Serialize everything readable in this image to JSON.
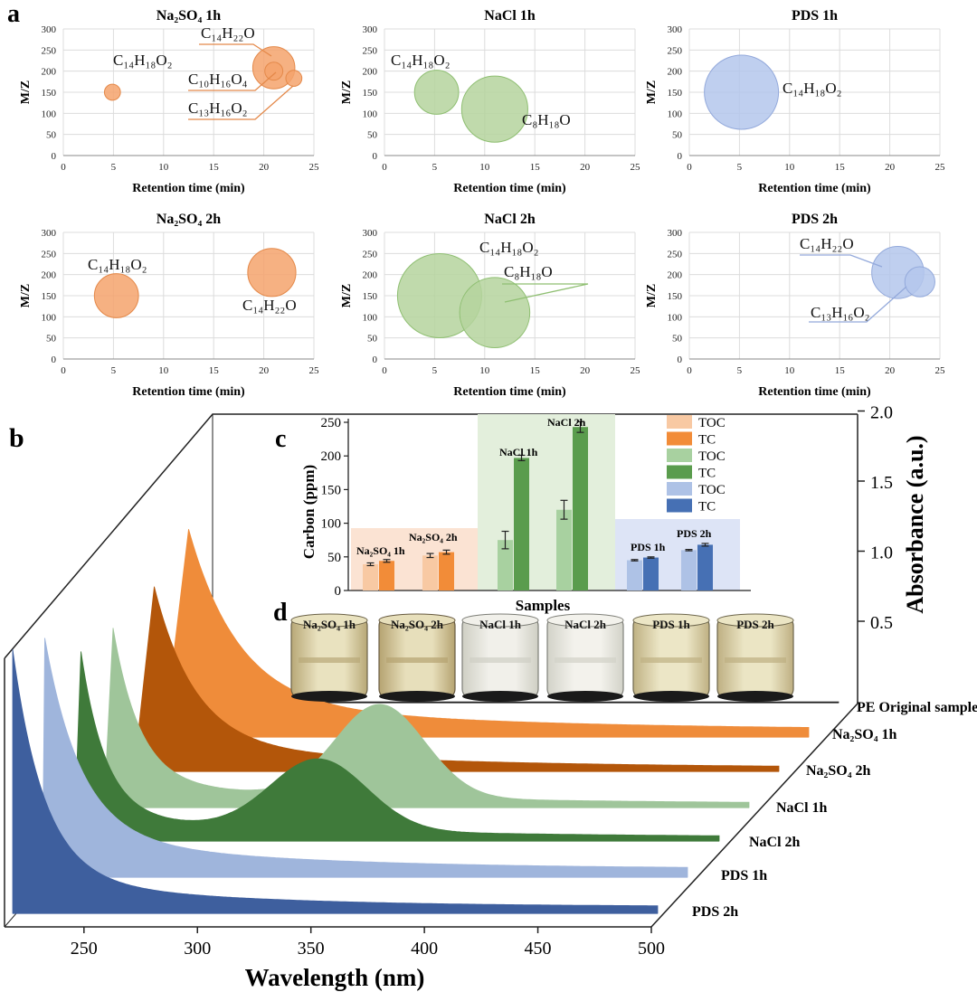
{
  "panel_labels": {
    "a": "a",
    "b": "b",
    "c": "c",
    "d": "d"
  },
  "chart_data": [
    {
      "panel": "a",
      "type": "scatter",
      "subtype": "bubble",
      "xlabel": "Retention time (min)",
      "ylabel": "M/Z",
      "xlim": [
        0,
        25
      ],
      "ylim": [
        0,
        300
      ],
      "xticks": [
        "0",
        "5",
        "10",
        "15",
        "20",
        "25"
      ],
      "yticks": [
        "0",
        "50",
        "100",
        "150",
        "200",
        "250",
        "300"
      ],
      "grid": true,
      "plots": [
        {
          "title": "Na₂SO₄ 1h",
          "color": "#f4a36c",
          "bubbles": [
            {
              "x": 4.9,
              "y": 150,
              "r": 0.8,
              "label": "C₁₄H₁₈O₂"
            },
            {
              "x": 21.0,
              "y": 208,
              "r": 2.1,
              "label": "C₁₄H₂₂O"
            },
            {
              "x": 21.0,
              "y": 200,
              "r": 0.9,
              "label": "C₁₀H₁₆O₄"
            },
            {
              "x": 23.0,
              "y": 183,
              "r": 0.8,
              "label": "C₁₃H₁₆O₂"
            }
          ]
        },
        {
          "title": "NaCl 1h",
          "color": "#b5d49d",
          "bubbles": [
            {
              "x": 5.2,
              "y": 150,
              "r": 2.2,
              "label": "C₁₄H₁₈O₂"
            },
            {
              "x": 11.0,
              "y": 110,
              "r": 3.3,
              "label": "C₈H₁₈O"
            }
          ]
        },
        {
          "title": "PDS 1h",
          "color": "#b4c7ec",
          "bubbles": [
            {
              "x": 5.2,
              "y": 150,
              "r": 3.7,
              "label": "C₁₄H₁₈O₂"
            }
          ]
        },
        {
          "title": "Na₂SO₄ 2h",
          "color": "#f4a36c",
          "bubbles": [
            {
              "x": 5.3,
              "y": 150,
              "r": 2.2,
              "label": "C₁₄H₁₈O₂"
            },
            {
              "x": 20.8,
              "y": 205,
              "r": 2.4,
              "label": "C₁₄H₂₂O"
            }
          ]
        },
        {
          "title": "NaCl 2h",
          "color": "#b5d49d",
          "bubbles": [
            {
              "x": 5.5,
              "y": 150,
              "r": 4.2,
              "label": "C₁₄H₁₈O₂"
            },
            {
              "x": 11.0,
              "y": 110,
              "r": 3.5,
              "label": "C₈H₁₈O"
            }
          ]
        },
        {
          "title": "PDS 2h",
          "color": "#b4c7ec",
          "bubbles": [
            {
              "x": 20.8,
              "y": 205,
              "r": 2.6,
              "label": "C₁₄H₂₂O"
            },
            {
              "x": 23.0,
              "y": 183,
              "r": 1.5,
              "label": "C₁₃H₁₆O₂"
            }
          ]
        }
      ]
    },
    {
      "panel": "b",
      "type": "area",
      "subtype": "stacked-3d-waterfall",
      "xlabel": "Wavelength (nm)",
      "ylabel": "Absorbance (a.u.)",
      "xlim": [
        215,
        500
      ],
      "ylim": [
        0,
        2.0
      ],
      "xticks": [
        "250",
        "300",
        "350",
        "400",
        "450",
        "500"
      ],
      "yticks": [
        "0.5",
        "1.0",
        "1.5",
        "2.0"
      ],
      "series": [
        {
          "name": "PDS 2h",
          "color": "#3e5f9e"
        },
        {
          "name": "PDS 1h",
          "color": "#9fb5dc"
        },
        {
          "name": "NaCl 2h",
          "color": "#3f7a3a"
        },
        {
          "name": "NaCl 1h",
          "color": "#9fc59a"
        },
        {
          "name": "Na₂SO₄ 2h",
          "color": "#b3560a"
        },
        {
          "name": "Na₂SO₄ 1h",
          "color": "#ef8c3a"
        },
        {
          "name": "PE Original sample",
          "color": "#222222"
        }
      ]
    },
    {
      "panel": "c",
      "type": "bar",
      "xlabel": "Samples",
      "ylabel": "Carbon (ppm)",
      "ylim": [
        0,
        250
      ],
      "yticks": [
        "0",
        "50",
        "100",
        "150",
        "200",
        "250"
      ],
      "legend": [
        {
          "name": "TOC",
          "color": "#f8c9a3"
        },
        {
          "name": "TC",
          "color": "#f28c38"
        },
        {
          "name": "TOC",
          "color": "#a8d1a0"
        },
        {
          "name": "TC",
          "color": "#5a9c4d"
        },
        {
          "name": "TOC",
          "color": "#aec2e6"
        },
        {
          "name": "TC",
          "color": "#4670b4"
        }
      ],
      "groups": [
        {
          "label": "Na₂SO₄ 1h",
          "toc": 39,
          "tc": 44,
          "toc_err": 2,
          "tc_err": 2,
          "toc_color": "#f8c9a3",
          "tc_color": "#f28c38",
          "bg": "#fbe3d3"
        },
        {
          "label": "Na₂SO₄ 2h",
          "toc": 52,
          "tc": 57,
          "toc_err": 3,
          "tc_err": 3,
          "toc_color": "#f8c9a3",
          "tc_color": "#f28c38",
          "bg": "#fbe3d3"
        },
        {
          "label": "NaCl 1h",
          "toc": 75,
          "tc": 197,
          "toc_err": 13,
          "tc_err": 4,
          "toc_color": "#a8d1a0",
          "tc_color": "#5a9c4d",
          "bg": "#e3efdc"
        },
        {
          "label": "NaCl 2h",
          "toc": 120,
          "tc": 243,
          "toc_err": 14,
          "tc_err": 8,
          "toc_color": "#a8d1a0",
          "tc_color": "#5a9c4d",
          "bg": "#e3efdc"
        },
        {
          "label": "PDS 1h",
          "toc": 45,
          "tc": 49,
          "toc_err": 1,
          "tc_err": 1,
          "toc_color": "#aec2e6",
          "tc_color": "#4670b4",
          "bg": "#dde4f6"
        },
        {
          "label": "PDS 2h",
          "toc": 60,
          "tc": 68,
          "toc_err": 1,
          "tc_err": 2,
          "toc_color": "#aec2e6",
          "tc_color": "#4670b4",
          "bg": "#dde4f6"
        }
      ]
    }
  ],
  "panel_d": {
    "samples": [
      "Na₂SO₄ 1h",
      "Na₂SO₄ 2h",
      "NaCl 1h",
      "NaCl 2h",
      "PDS 1h",
      "PDS 2h"
    ]
  }
}
